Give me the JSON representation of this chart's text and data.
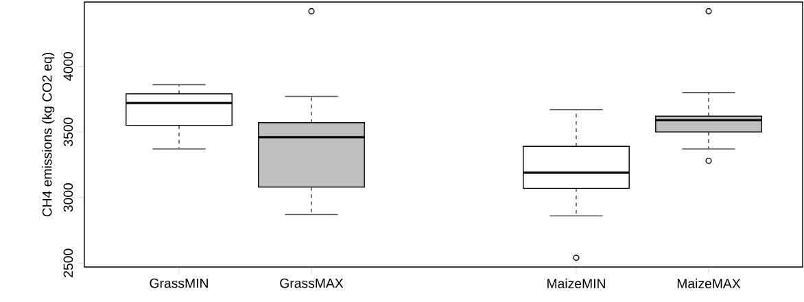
{
  "chart_data": {
    "type": "box",
    "ylabel": "CH4 emissions (kg CO2 eq)",
    "categories": [
      "GrassMIN",
      "GrassMAX",
      null,
      "MaizeMIN",
      "MaizeMAX"
    ],
    "boxes": [
      {
        "low": 3370,
        "q1": 3550,
        "median": 3720,
        "q3": 3790,
        "high": 3860
      },
      {
        "low": 2870,
        "q1": 3080,
        "median": 3460,
        "q3": 3570,
        "high": 3770,
        "outliers": [
          4420
        ]
      },
      null,
      {
        "low": 2860,
        "q1": 3070,
        "median": 3190,
        "q3": 3390,
        "high": 3670,
        "outliers": [
          2540
        ]
      },
      {
        "low": 3370,
        "q1": 3500,
        "median": 3590,
        "q3": 3620,
        "high": 3800,
        "outliers": [
          4420,
          3280
        ]
      }
    ],
    "colors": [
      "#ffffff",
      "#c0c0c0",
      null,
      "#ffffff",
      "#c0c0c0"
    ],
    "ylim": [
      2470,
      4490
    ],
    "yticks": [
      2500,
      3000,
      3500,
      4000
    ],
    "marker": "circle"
  }
}
